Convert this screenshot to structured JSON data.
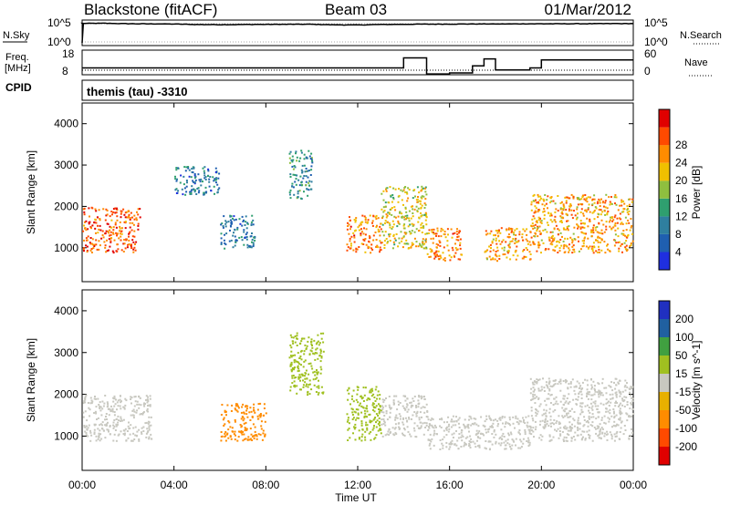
{
  "header": {
    "station": "Blackstone (fitACF)",
    "beam": "Beam 03",
    "date": "01/Mar/2012"
  },
  "top_panels": {
    "nsky_label": "N.Sky",
    "nsky_ticks": [
      "10^5",
      "10^0"
    ],
    "nsearch_label": "N.Search",
    "nsearch_ticks": [
      "10^5",
      "10^0"
    ],
    "freq_label": "Freq.",
    "freq_unit": "[MHz]",
    "freq_ticks": [
      "18",
      "8"
    ],
    "nave_label": "Nave",
    "nave_ticks": [
      "60",
      "0"
    ],
    "cpid_label": "CPID",
    "cpid_value": "themis (tau) -3310"
  },
  "colors": {
    "power_scale": [
      "#1f2fe0",
      "#1f5fb0",
      "#2f7f9f",
      "#2f9f6f",
      "#8fbf3f",
      "#f0c000",
      "#ff8c00",
      "#ff4a00",
      "#e00000"
    ],
    "velocity_scale": [
      "#e00000",
      "#ff4a00",
      "#ff8c00",
      "#e8b000",
      "#c8c8c0",
      "#a0c020",
      "#40a040",
      "#2060a0",
      "#2030c0"
    ],
    "ground_scatter": "#b8b8b0",
    "trace": "#000000"
  },
  "chart_data": [
    {
      "type": "line",
      "title": "N.Sky / N.Search",
      "x": [
        "00:00",
        "01:00",
        "02:00",
        "03:00",
        "04:00",
        "05:00",
        "06:00",
        "07:00",
        "08:00",
        "09:00",
        "10:00",
        "11:00",
        "12:00",
        "13:00",
        "14:00",
        "15:00",
        "16:00",
        "17:00",
        "18:00",
        "19:00",
        "20:00",
        "21:00",
        "22:00",
        "23:00",
        "24:00"
      ],
      "series": [
        {
          "name": "N.Sky",
          "values": [
            120000.0,
            130000.0,
            100000.0,
            90000.0,
            80000.0,
            60000.0,
            55000.0,
            60000.0,
            65000.0,
            70000.0,
            70000.0,
            50000.0,
            45000.0,
            60000.0,
            70000.0,
            75000.0,
            80000.0,
            85000.0,
            85000.0,
            90000.0,
            95000.0,
            95000.0,
            100000.0,
            105000.0,
            110000.0
          ]
        }
      ]
    },
    {
      "type": "line",
      "title": "Freq. / Nave",
      "x": [
        "00:00",
        "02:00",
        "04:00",
        "06:00",
        "08:00",
        "10:00",
        "12:00",
        "13:00",
        "14:00",
        "15:00",
        "16:00",
        "17:00",
        "17:30",
        "18:00",
        "19:30",
        "20:00",
        "22:00",
        "24:00"
      ],
      "series": [
        {
          "name": "Freq.",
          "values": [
            10.5,
            10.5,
            10.5,
            10.5,
            10.5,
            10.5,
            10.5,
            10.5,
            15.5,
            7.5,
            8,
            11.5,
            15,
            9.5,
            10.5,
            14.5,
            14.5,
            14.5
          ]
        }
      ],
      "ylim": [
        8,
        18
      ]
    },
    {
      "type": "heatmap",
      "title": "Power",
      "xlabel": "",
      "ylabel": "Slant Range [km]",
      "ylim": [
        180,
        4500
      ],
      "yticks": [
        1000,
        2000,
        3000,
        4000
      ],
      "colorbar_label": "Power [dB]",
      "colorbar_ticks": [
        4,
        8,
        12,
        16,
        20,
        24,
        28
      ],
      "colorbar_range": [
        0,
        32
      ],
      "structures": [
        {
          "x_start": "00:00",
          "x_end": "02:30",
          "range_start": 900,
          "range_end": 2000,
          "value": 26
        },
        {
          "x_start": "04:00",
          "x_end": "06:00",
          "range_start": 2300,
          "range_end": 3000,
          "value": 8
        },
        {
          "x_start": "06:00",
          "x_end": "07:30",
          "range_start": 1000,
          "range_end": 1800,
          "value": 8
        },
        {
          "x_start": "09:00",
          "x_end": "10:00",
          "range_start": 2200,
          "range_end": 3400,
          "value": 10
        },
        {
          "x_start": "11:30",
          "x_end": "13:00",
          "range_start": 900,
          "range_end": 1800,
          "value": 24
        },
        {
          "x_start": "13:00",
          "x_end": "15:00",
          "range_start": 1000,
          "range_end": 2500,
          "value": 18
        },
        {
          "x_start": "15:00",
          "x_end": "16:30",
          "range_start": 700,
          "range_end": 1500,
          "value": 24
        },
        {
          "x_start": "17:30",
          "x_end": "19:30",
          "range_start": 700,
          "range_end": 1500,
          "value": 22
        },
        {
          "x_start": "19:30",
          "x_end": "23:59",
          "range_start": 900,
          "range_end": 2300,
          "value": 22
        }
      ]
    },
    {
      "type": "heatmap",
      "title": "Velocity",
      "xlabel": "Time UT",
      "ylabel": "Slant Range [km]",
      "ylim": [
        180,
        4500
      ],
      "yticks": [
        1000,
        2000,
        3000,
        4000
      ],
      "xticks": [
        "00:00",
        "04:00",
        "08:00",
        "12:00",
        "16:00",
        "20:00",
        "00:00"
      ],
      "colorbar_label": "Velocity [m s^-1]",
      "colorbar_ticks": [
        -200,
        -100,
        -50,
        -15,
        15,
        50,
        100,
        200
      ],
      "colorbar_range": [
        -250,
        250
      ],
      "structures": [
        {
          "x_start": "00:00",
          "x_end": "03:00",
          "range_start": 900,
          "range_end": 2000,
          "value": 0
        },
        {
          "x_start": "06:00",
          "x_end": "08:00",
          "range_start": 900,
          "range_end": 1800,
          "value": -80
        },
        {
          "x_start": "09:00",
          "x_end": "10:30",
          "range_start": 2000,
          "range_end": 3500,
          "value": 30
        },
        {
          "x_start": "11:30",
          "x_end": "13:00",
          "range_start": 900,
          "range_end": 2200,
          "value": 40
        },
        {
          "x_start": "13:00",
          "x_end": "15:00",
          "range_start": 1000,
          "range_end": 2000,
          "value": 0
        },
        {
          "x_start": "15:00",
          "x_end": "19:30",
          "range_start": 700,
          "range_end": 1500,
          "value": 0
        },
        {
          "x_start": "19:30",
          "x_end": "23:59",
          "range_start": 900,
          "range_end": 2400,
          "value": 0
        }
      ]
    }
  ]
}
